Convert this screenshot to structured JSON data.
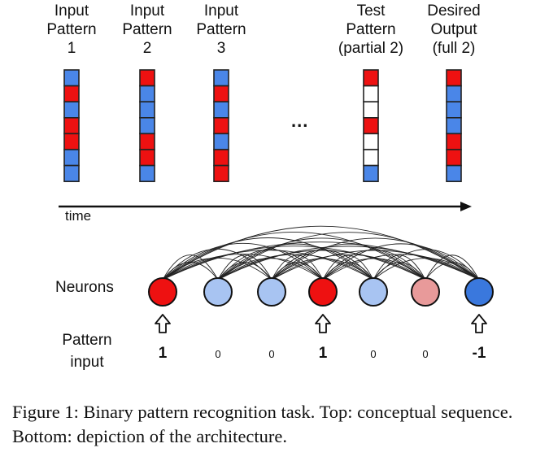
{
  "columns": [
    {
      "lines": [
        "Input",
        "Pattern",
        "1"
      ],
      "cells": [
        "B",
        "R",
        "B",
        "R",
        "R",
        "B",
        "B"
      ]
    },
    {
      "lines": [
        "Input",
        "Pattern",
        "2"
      ],
      "cells": [
        "R",
        "B",
        "B",
        "B",
        "R",
        "R",
        "B"
      ]
    },
    {
      "lines": [
        "Input",
        "Pattern",
        "3"
      ],
      "cells": [
        "B",
        "R",
        "B",
        "R",
        "B",
        "R",
        "R"
      ]
    },
    {
      "lines": [
        "Test",
        "Pattern",
        "(partial 2)"
      ],
      "cells": [
        "R",
        "W",
        "W",
        "R",
        "W",
        "W",
        "B"
      ]
    },
    {
      "lines": [
        "Desired",
        "Output",
        "(full 2)"
      ],
      "cells": [
        "R",
        "B",
        "B",
        "B",
        "R",
        "R",
        "B"
      ]
    }
  ],
  "ellipsis": "...",
  "time_label": "time",
  "neurons_label": "Neurons",
  "pattern_input_label": [
    "Pattern",
    "input"
  ],
  "neurons": [
    {
      "fill": "#ee1111",
      "input": "1",
      "arrow": true
    },
    {
      "fill": "#a8c4f2",
      "input": "0",
      "arrow": false
    },
    {
      "fill": "#a8c4f2",
      "input": "0",
      "arrow": false
    },
    {
      "fill": "#ee1111",
      "input": "1",
      "arrow": true
    },
    {
      "fill": "#a8c4f2",
      "input": "0",
      "arrow": false
    },
    {
      "fill": "#e89a9a",
      "input": "0",
      "arrow": false
    },
    {
      "fill": "#3a78dd",
      "input": "-1",
      "arrow": true
    }
  ],
  "colors": {
    "red": "#ee1111",
    "blue": "#4a86e8",
    "white": "#ffffff",
    "grid_line": "#222222"
  },
  "caption": "Figure 1: Binary pattern recognition task. Top: conceptual sequence. Bottom: depiction of the architecture."
}
